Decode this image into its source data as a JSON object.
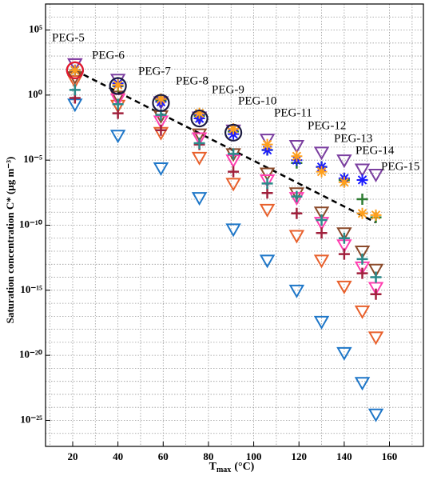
{
  "chart_data": {
    "type": "scatter",
    "xlabel": {
      "main": "T",
      "sub": "max",
      "unit": "(°C)"
    },
    "ylabel": "Saturation concentration C* (μg m⁻³)",
    "log_y": true,
    "grid": true,
    "xlim": [
      8,
      175
    ],
    "ylim": [
      1e-27,
      10000000.0
    ],
    "xticks": [
      20,
      40,
      60,
      80,
      100,
      120,
      140,
      160
    ],
    "xminorticks": [
      10,
      30,
      50,
      70,
      90,
      110,
      130,
      150,
      170
    ],
    "yticks": [
      {
        "value": 100000.0,
        "label": "10⁵"
      },
      {
        "value": 1,
        "label": "10⁰"
      },
      {
        "value": 1e-05,
        "label": "10⁻⁵"
      },
      {
        "value": 1e-10,
        "label": "10⁻¹⁰"
      },
      {
        "value": 1e-15,
        "label": "10⁻¹⁵"
      },
      {
        "value": 1e-20,
        "label": "10⁻²⁰"
      },
      {
        "value": 1e-25,
        "label": "10⁻²⁵"
      }
    ],
    "yminorticks": [
      1000000.0,
      10000.0,
      1000.0,
      100.0,
      10.0,
      0.1,
      0.01,
      0.001,
      0.0001,
      1e-06,
      1e-07,
      1e-08,
      1e-09,
      1e-11,
      1e-12,
      1e-13,
      1e-14,
      1e-16,
      1e-17,
      1e-18,
      1e-19,
      1e-21,
      1e-22,
      1e-23,
      1e-24,
      1e-26
    ],
    "x": [
      21,
      40,
      59,
      76,
      91,
      106,
      119,
      130,
      140,
      148,
      154
    ],
    "point_labels": [
      "PEG-5",
      "PEG-6",
      "PEG-7",
      "PEG-8",
      "PEG-9",
      "PEG-10",
      "PEG-11",
      "PEG-12",
      "PEG-13",
      "PEG-14",
      "PEG-15"
    ],
    "series": [
      {
        "marker": "triangle",
        "color": "#1f77c8",
        "values": [
          0.2,
          0.0008,
          2.5e-06,
          1.3e-08,
          5e-11,
          2e-13,
          1e-15,
          4e-18,
          1.6e-20,
          8e-23,
          3e-25
        ]
      },
      {
        "marker": "triangle",
        "color": "#e8602c",
        "values": [
          12.6,
          0.16,
          0.0013,
          1.6e-05,
          1.6e-07,
          1.6e-09,
          1.6e-11,
          2e-13,
          2e-15,
          2.5e-17,
          2.5e-19
        ]
      },
      {
        "marker": "triangle",
        "color": "#8b4a2a",
        "values": [
          25,
          0.8,
          0.025,
          0.001,
          3e-05,
          1e-06,
          3e-08,
          1e-09,
          2.5e-11,
          1e-12,
          4e-14
        ]
      },
      {
        "marker": "triangle",
        "color": "#ff3fb0",
        "values": [
          250,
          0.5,
          0.01,
          0.0005,
          1e-05,
          3e-07,
          1.3e-08,
          1.6e-10,
          3e-12,
          6e-14,
          1.6e-15
        ]
      },
      {
        "marker": "triangle",
        "color": "#7b3fa0",
        "values": [
          250,
          16,
          0.3,
          0.02,
          0.002,
          0.0004,
          0.00013,
          4e-05,
          1e-05,
          2e-06,
          8e-07
        ]
      },
      {
        "marker": "plus",
        "color": "#a0203c",
        "values": [
          0.6,
          0.04,
          0.002,
          0.00016,
          1.3e-06,
          3e-08,
          8e-10,
          2.5e-11,
          6e-13,
          2e-14,
          5e-16
        ]
      },
      {
        "marker": "plus",
        "color": "#2a8a8a",
        "values": [
          2.5,
          0.2,
          0.03,
          0.0002,
          3e-05,
          1.6e-07,
          1.6e-08,
          2.5e-10,
          1e-11,
          2.5e-13,
          1e-14
        ]
      },
      {
        "marker": "plus",
        "color": "#2e7d32",
        "values": [
          80,
          5,
          0.4,
          0.025,
          0.0016,
          6e-05,
          6e-06,
          3e-06,
          3e-07,
          1e-08,
          4e-10
        ]
      },
      {
        "marker": "star",
        "color": "#1a1aff",
        "values": [
          80,
          8,
          0.3,
          0.016,
          0.001,
          6e-05,
          1e-05,
          3e-06,
          4e-07,
          3e-07,
          null
        ]
      },
      {
        "marker": "star",
        "color": "#ff9f1c",
        "values": [
          80,
          6,
          0.5,
          0.04,
          0.0025,
          0.00016,
          2e-05,
          1.3e-06,
          2e-07,
          8e-10,
          6e-10
        ]
      },
      {
        "marker": "circle",
        "color": "#1a1a40",
        "values": [
          80,
          5,
          0.25,
          0.016,
          0.0013,
          null,
          null,
          null,
          null,
          null,
          null
        ]
      },
      {
        "marker": "circle",
        "color": "#e8182e",
        "values": [
          80,
          null,
          null,
          null,
          null,
          null,
          null,
          null,
          null,
          null,
          null
        ]
      }
    ],
    "fit_line": {
      "color": "#000000",
      "x": [
        21,
        154
      ],
      "values": [
        80,
        1.6e-10
      ]
    }
  }
}
